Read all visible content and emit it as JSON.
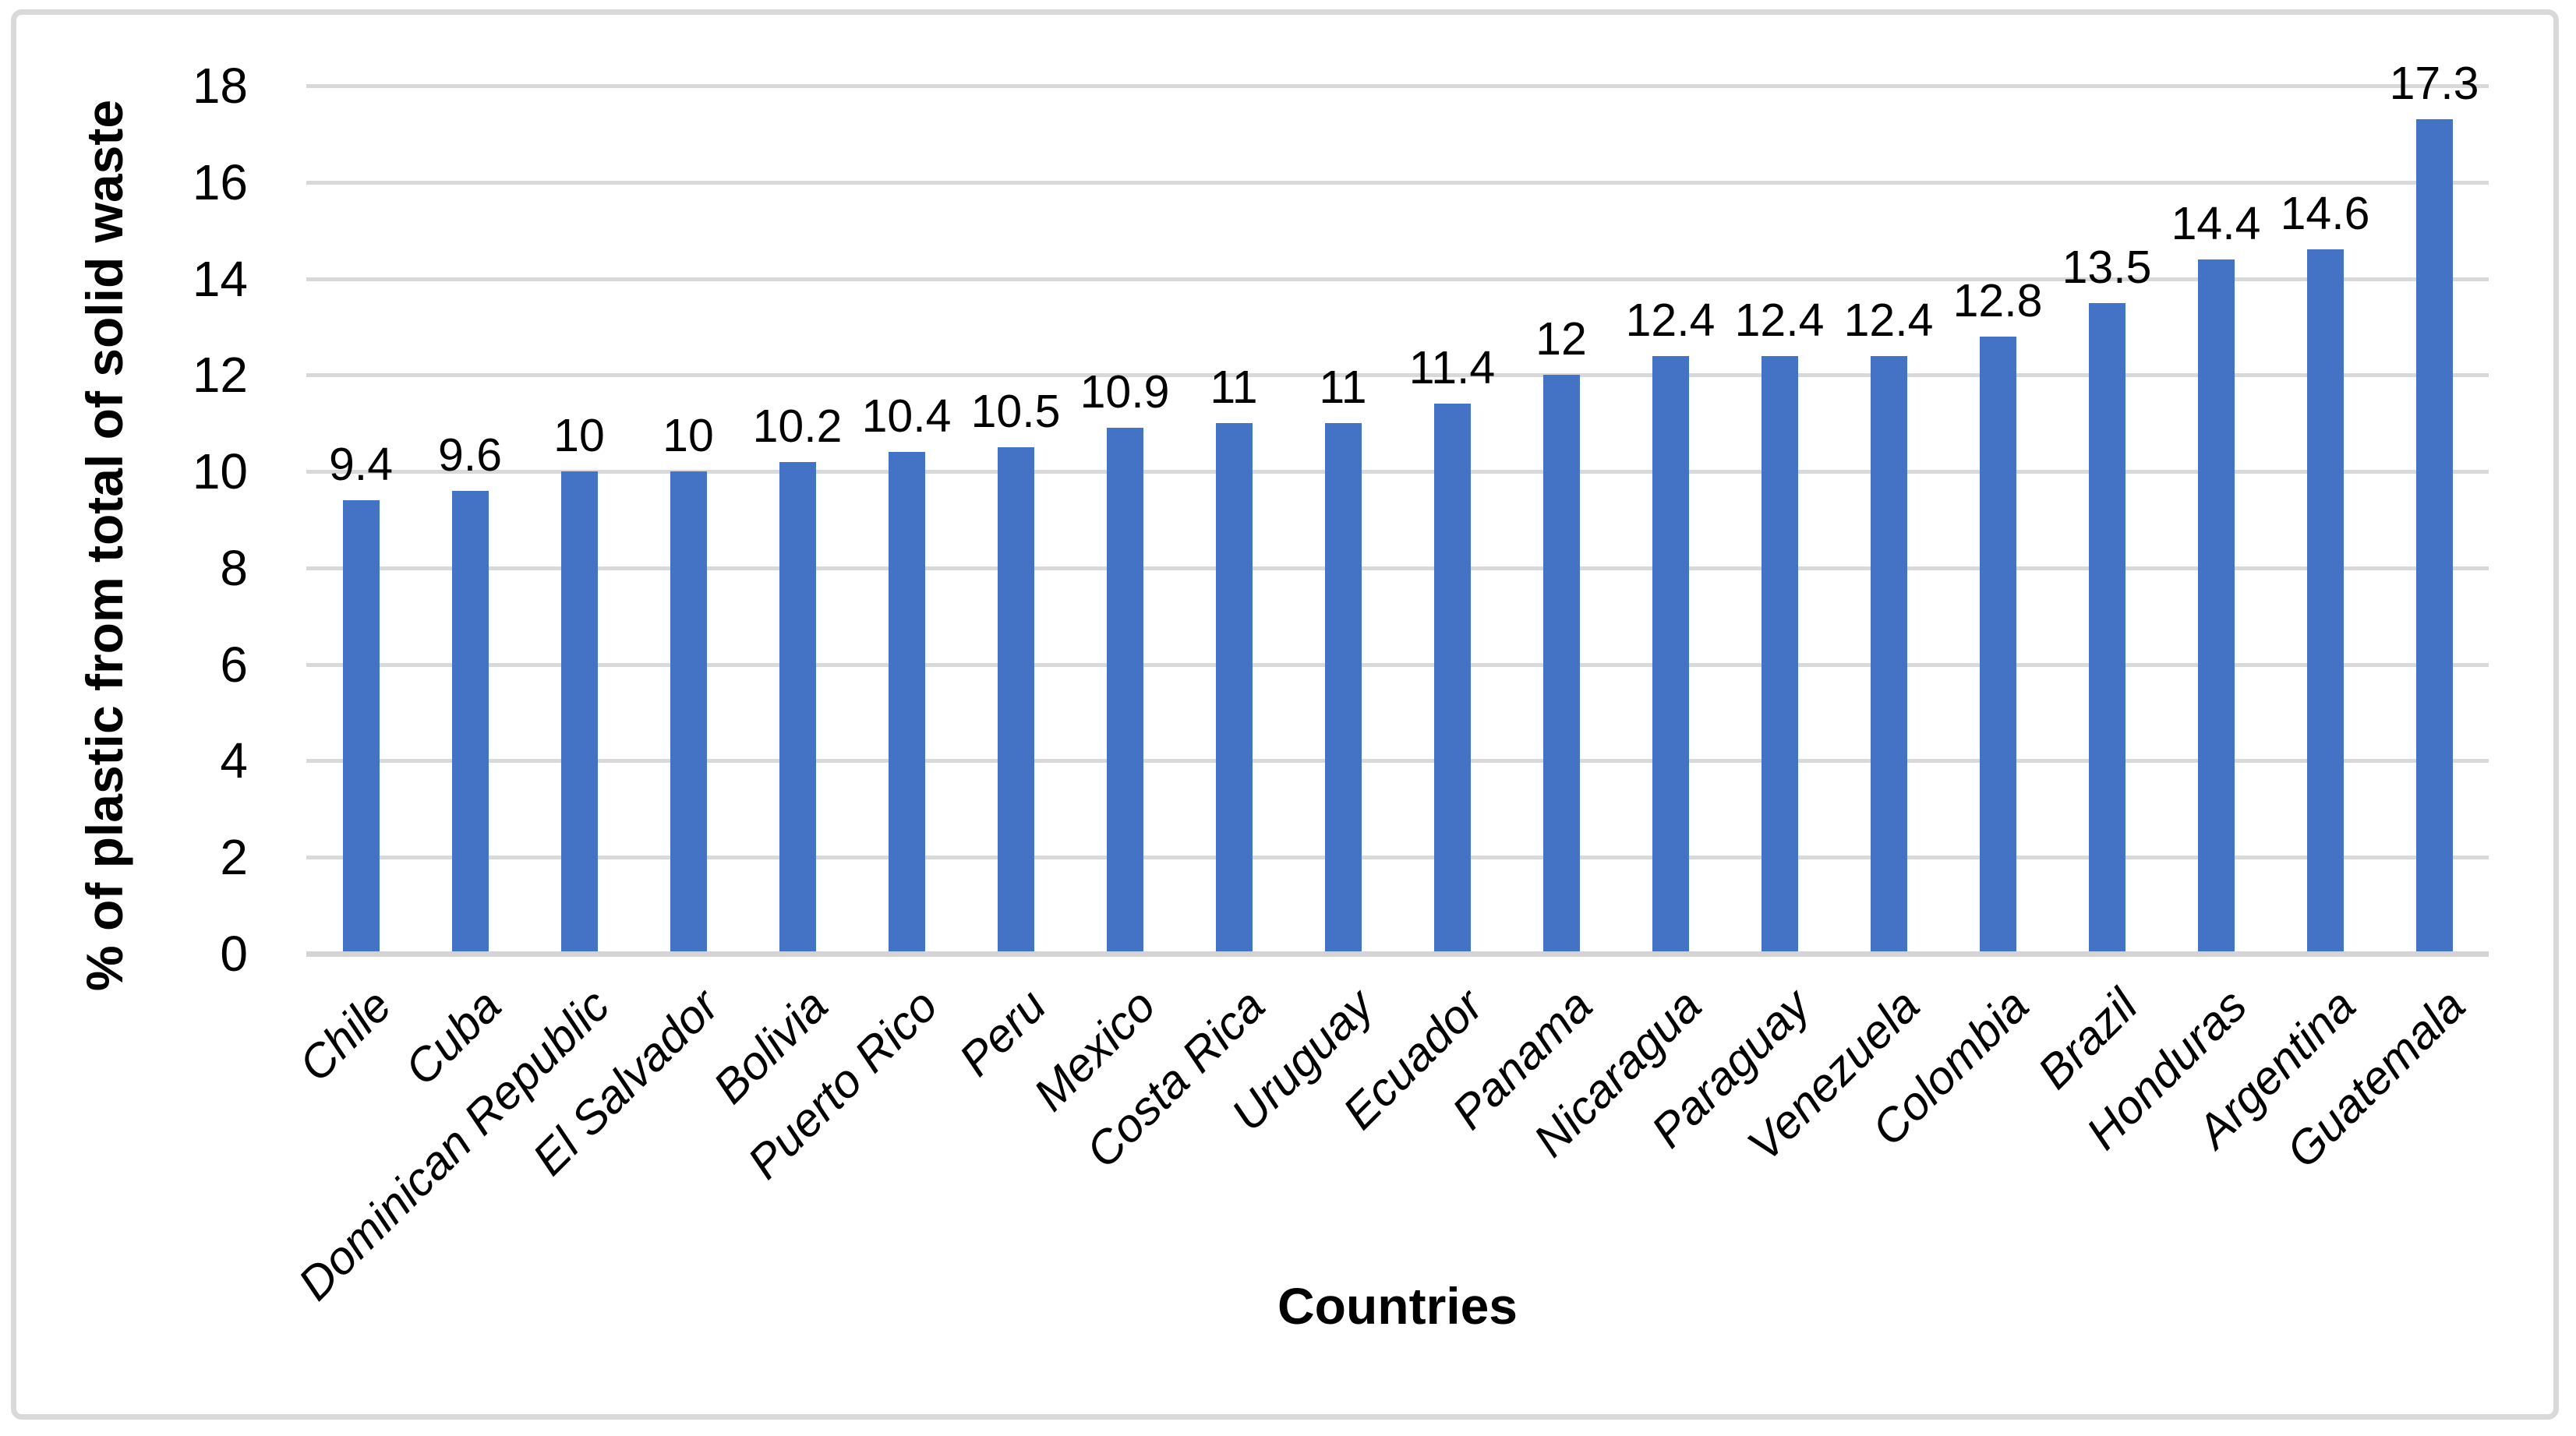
{
  "chart_data": {
    "type": "bar",
    "title": "",
    "xlabel": "Countries",
    "ylabel": "% of plastic from total of solid waste",
    "categories": [
      "Chile",
      "Cuba",
      "Dominican Republic",
      "El Salvador",
      "Bolivia",
      "Puerto Rico",
      "Peru",
      "Mexico",
      "Costa Rica",
      "Uruguay",
      "Ecuador",
      "Panama",
      "Nicaragua",
      "Paraguay",
      "Venezuela",
      "Colombia",
      "Brazil",
      "Honduras",
      "Argentina",
      "Guatemala"
    ],
    "values": [
      9.4,
      9.6,
      10,
      10,
      10.2,
      10.4,
      10.5,
      10.9,
      11,
      11,
      11.4,
      12,
      12.4,
      12.4,
      12.4,
      12.8,
      13.5,
      14.4,
      14.6,
      17.3
    ],
    "value_labels": [
      "9.4",
      "9.6",
      "10",
      "10",
      "10.2",
      "10.4",
      "10.5",
      "10.9",
      "11",
      "11",
      "11.4",
      "12",
      "12.4",
      "12.4",
      "12.4",
      "12.8",
      "13.5",
      "14.4",
      "14.6",
      "17.3"
    ],
    "yticks": [
      "0",
      "2",
      "4",
      "6",
      "8",
      "10",
      "12",
      "14",
      "16",
      "18"
    ],
    "ylim": [
      0,
      18
    ],
    "ytick_step": 2,
    "grid": "horizontal-on",
    "legend": "none",
    "bar_color": "#4472C4",
    "gridline_color": "#D9D9D9",
    "axis_line_color": "#D4D4D4",
    "border_color": "#D9D9D9",
    "text_color": "#000000",
    "background_color": "#FFFFFF"
  }
}
